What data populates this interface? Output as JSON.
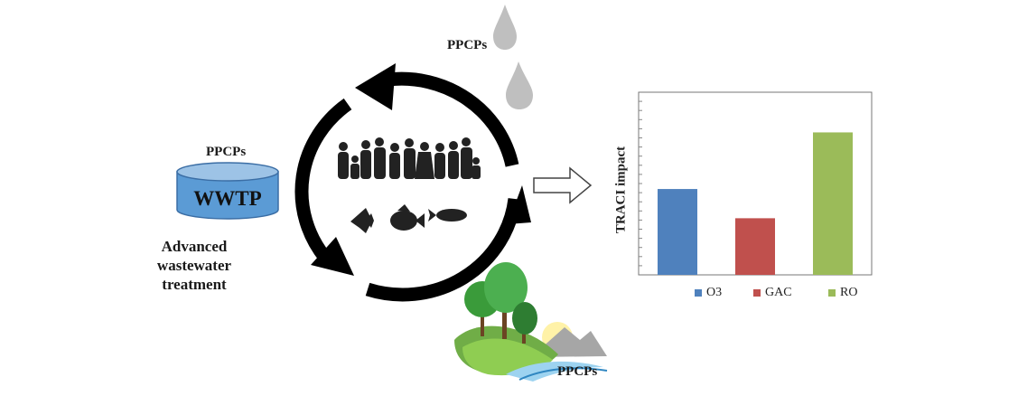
{
  "labels": {
    "ppcps_cycle": "PPCPs",
    "ppcps_wwtp": "PPCPs",
    "ppcps_land": "PPCPs",
    "wwtp": "WWTP",
    "advanced_treatment": "Advanced wastewater\ntreatment"
  },
  "colors": {
    "tank": "#5b9bd5",
    "drop": "#bfbfbf",
    "arrow": "#000000"
  },
  "icons": [
    "rain-drop-icon",
    "people-group-icon",
    "fish-icon",
    "landscape-icon",
    "hollow-arrow-icon",
    "wwtp-tank-icon"
  ],
  "chart_data": {
    "type": "bar",
    "categories": [
      "O3",
      "GAC",
      "RO"
    ],
    "values": [
      0.47,
      0.31,
      0.78
    ],
    "ylim": [
      0,
      1
    ],
    "ylabel": "TRACI impact",
    "title": "",
    "xlabel": "",
    "grid": false,
    "legend_placement": "bottom",
    "colors": [
      "#4f81bd",
      "#c0504d",
      "#9bbb59"
    ]
  }
}
